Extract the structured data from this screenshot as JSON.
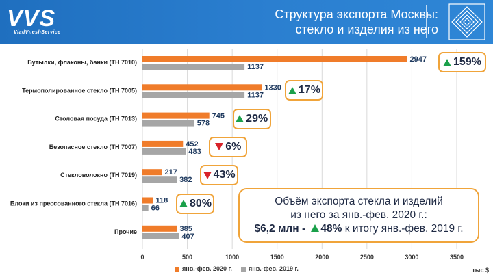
{
  "header": {
    "logo": "VVS",
    "logo_sub": "VladVneshService",
    "title_line1": "Структура экспорта Москвы:",
    "title_line2": "стекло и изделия из него"
  },
  "colors": {
    "series_2020": "#f07c2a",
    "series_2019": "#a6a6a6",
    "value_text": "#1f3a5f",
    "badge_border": "#f0a43a",
    "up": "#1aa04a",
    "down": "#d8232a"
  },
  "chart_data": {
    "type": "bar",
    "orientation": "horizontal",
    "categories": [
      "Бутылки, флаконы, банки (ТН 7010)",
      "Термополированное стекло (ТН 7005)",
      "Столовая посуда (ТН 7013)",
      "Безопасное стекло (ТН 7007)",
      "Стекловолокно (ТН 7019)",
      "Блоки из прессованного стекла (ТН 7016)",
      "Прочие"
    ],
    "series": [
      {
        "name": "янв.-фев. 2020 г.",
        "values": [
          2947,
          1330,
          745,
          452,
          217,
          118,
          385
        ]
      },
      {
        "name": "янв.-фев. 2019 г.",
        "values": [
          1137,
          1137,
          578,
          483,
          382,
          66,
          407
        ]
      }
    ],
    "changes": [
      {
        "direction": "up",
        "text": "159%"
      },
      {
        "direction": "up",
        "text": "17%"
      },
      {
        "direction": "up",
        "text": "29%"
      },
      {
        "direction": "down",
        "text": "6%"
      },
      {
        "direction": "down",
        "text": "43%"
      },
      {
        "direction": "up",
        "text": "80%"
      },
      null
    ],
    "xlim": [
      0,
      3500
    ],
    "xticks": [
      "0",
      "500",
      "1000",
      "1500",
      "2000",
      "2500",
      "3000",
      "3500"
    ],
    "unit": "тыс $",
    "legend_position": "bottom"
  },
  "summary": {
    "line1": "Объём экспорта стекла и изделий",
    "line2": "из него за янв.-фев. 2020 г.:",
    "line3_value": "$6,2 млн -",
    "line3_pct": "48%",
    "line3_rest": "к итогу янв.-фев. 2019 г."
  }
}
